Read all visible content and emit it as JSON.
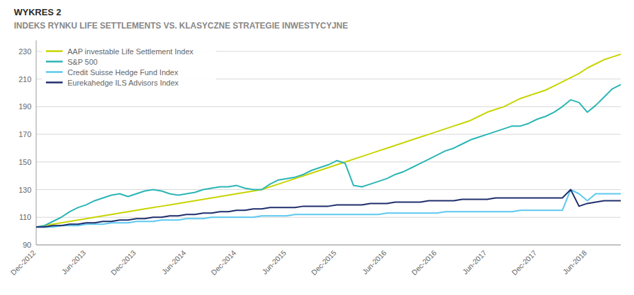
{
  "chart_data": {
    "type": "line",
    "title": "WYKRES 2",
    "subtitle": "INDEKS RYNKU LIFE SETTLEMENTS VS. KLASYCZNE STRATEGIE INWESTYCYJNE",
    "categories": [
      "Dec-2012",
      null,
      null,
      null,
      null,
      null,
      "Jun-2013",
      null,
      null,
      null,
      null,
      null,
      "Dec-2013",
      null,
      null,
      null,
      null,
      null,
      "Jun-2014",
      null,
      null,
      null,
      null,
      null,
      "Dec-2014",
      null,
      null,
      null,
      null,
      null,
      "Jun-2015",
      null,
      null,
      null,
      null,
      null,
      "Dec-2015",
      null,
      null,
      null,
      null,
      null,
      "Jun-2016",
      null,
      null,
      null,
      null,
      null,
      "Dec-2016",
      null,
      null,
      null,
      null,
      null,
      "Jun-2017",
      null,
      null,
      null,
      null,
      null,
      "Dec-2017",
      null,
      null,
      null,
      null,
      null,
      "Jun-2018",
      null,
      null,
      null,
      null
    ],
    "series": [
      {
        "name": "AAP investable Life Settlement Index",
        "color": "#c8d400",
        "values": [
          103,
          104,
          105,
          106,
          107,
          108,
          109,
          110,
          111,
          112,
          113,
          114,
          115,
          116,
          117,
          118,
          119,
          120,
          121,
          122,
          123,
          124,
          125,
          126,
          127,
          128,
          129,
          130,
          132,
          134,
          136,
          138,
          140,
          142,
          144,
          146,
          148,
          150,
          152,
          154,
          156,
          158,
          160,
          162,
          164,
          166,
          168,
          170,
          172,
          174,
          176,
          178,
          180,
          183,
          186,
          188,
          190,
          193,
          196,
          198,
          200,
          202,
          205,
          208,
          211,
          214,
          218,
          221,
          224,
          226,
          228
        ]
      },
      {
        "name": "S&P 500",
        "color": "#2ab5b5",
        "values": [
          103,
          104,
          107,
          110,
          114,
          117,
          119,
          122,
          124,
          126,
          127,
          125,
          127,
          129,
          130,
          129,
          127,
          126,
          127,
          128,
          130,
          131,
          132,
          132,
          133,
          131,
          130,
          130,
          134,
          137,
          138,
          139,
          141,
          144,
          146,
          148,
          151,
          149,
          133,
          132,
          134,
          136,
          138,
          141,
          143,
          146,
          149,
          152,
          155,
          158,
          160,
          163,
          166,
          168,
          170,
          172,
          174,
          176,
          176,
          178,
          181,
          183,
          186,
          190,
          195,
          193,
          186,
          191,
          197,
          203,
          206
        ]
      },
      {
        "name": "Credit Suisse Hedge Fund Index",
        "color": "#5bc8f0",
        "values": [
          103,
          103,
          103,
          104,
          104,
          104,
          105,
          105,
          105,
          106,
          106,
          106,
          107,
          107,
          107,
          108,
          108,
          108,
          109,
          109,
          109,
          110,
          110,
          110,
          110,
          110,
          110,
          111,
          111,
          111,
          111,
          112,
          112,
          112,
          112,
          112,
          112,
          112,
          112,
          112,
          112,
          112,
          113,
          113,
          113,
          113,
          113,
          113,
          113,
          114,
          114,
          114,
          114,
          114,
          114,
          114,
          114,
          114,
          115,
          115,
          115,
          115,
          115,
          115,
          130,
          127,
          122,
          127,
          127,
          127,
          127
        ]
      },
      {
        "name": "Eurekahedge ILS Advisors Index",
        "color": "#1e2d6b",
        "values": [
          103,
          103,
          104,
          104,
          105,
          105,
          106,
          106,
          107,
          107,
          108,
          108,
          109,
          109,
          110,
          110,
          111,
          111,
          112,
          112,
          113,
          113,
          114,
          114,
          115,
          115,
          116,
          116,
          117,
          117,
          117,
          117,
          118,
          118,
          118,
          118,
          119,
          119,
          119,
          119,
          120,
          120,
          120,
          121,
          121,
          121,
          121,
          122,
          122,
          122,
          122,
          123,
          123,
          123,
          123,
          124,
          124,
          124,
          124,
          124,
          124,
          124,
          124,
          124,
          130,
          118,
          120,
          121,
          122,
          122,
          122
        ]
      }
    ],
    "ylim": [
      90,
      238
    ],
    "yticks": [
      90,
      110,
      130,
      150,
      170,
      190,
      210,
      230
    ],
    "grid": true,
    "legend": "upper left"
  }
}
